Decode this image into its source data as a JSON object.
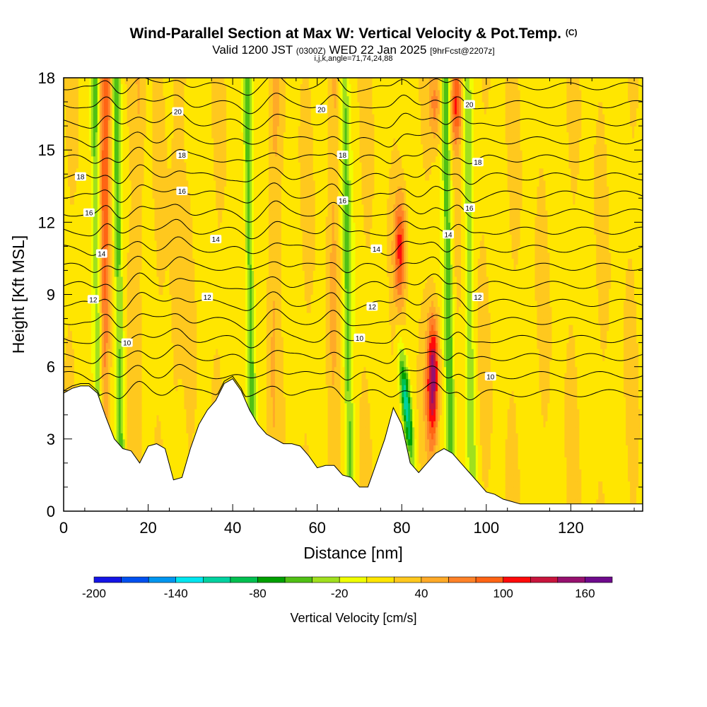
{
  "title": {
    "main": "Wind-Parallel Section at Max W: Vertical Velocity & Pot.Temp.",
    "copyright": "(C)",
    "valid_prefix": "Valid 1200 JST",
    "valid_z": "(0300Z)",
    "valid_date": "WED 22 Jan 2025",
    "forecast": "[9hrFcst@2207z]",
    "ijk": "i,j,k,angle=71,74,24,88"
  },
  "chart_data": {
    "type": "heatmap",
    "xlabel": "Distance [nm]",
    "ylabel": "Height [Kft MSL]",
    "xlim": [
      0,
      137
    ],
    "ylim": [
      0,
      18
    ],
    "x_ticks": [
      0,
      20,
      40,
      60,
      80,
      100,
      120
    ],
    "y_ticks": [
      0,
      3,
      6,
      9,
      12,
      15,
      18
    ],
    "colorbar": {
      "title": "Vertical Velocity [cm/s]",
      "boundaries": [
        -200,
        -180,
        -160,
        -140,
        -120,
        -100,
        -80,
        -60,
        -40,
        -20,
        0,
        20,
        40,
        60,
        80,
        100,
        120,
        140,
        160,
        180
      ],
      "tick_labels": [
        "-200",
        "-140",
        "-80",
        "-20",
        "40",
        "100",
        "160"
      ],
      "colors": [
        "#1414e6",
        "#0050f0",
        "#0096f0",
        "#00e6f0",
        "#00d2a0",
        "#00c050",
        "#00a000",
        "#50c014",
        "#a0e01e",
        "#f0ff00",
        "#ffe600",
        "#ffc81e",
        "#ffaa28",
        "#ff8228",
        "#ff6414",
        "#ff0a0a",
        "#c8143c",
        "#96106e",
        "#6e0a8c"
      ]
    },
    "updraft_cores": [
      {
        "x": 10,
        "w_max": 100
      },
      {
        "x": 18,
        "w_max": 40
      },
      {
        "x": 27,
        "w_max": 40
      },
      {
        "x": 50,
        "w_max": 40
      },
      {
        "x": 64,
        "w_max": 40
      },
      {
        "x": 80,
        "w_max": 100
      },
      {
        "x": 88,
        "w_max": 160
      },
      {
        "x": 93,
        "w_max": 100
      }
    ],
    "downdraft_bands": [
      {
        "x": 8,
        "w_min": -80
      },
      {
        "x": 13,
        "w_min": -60
      },
      {
        "x": 44,
        "w_min": -80
      },
      {
        "x": 67,
        "w_min": -60
      },
      {
        "x": 78,
        "w_min": -120
      },
      {
        "x": 91,
        "w_min": -80
      },
      {
        "x": 96,
        "w_min": -40
      }
    ],
    "terrain": {
      "x": [
        0,
        2,
        4,
        6,
        8,
        10,
        12,
        14,
        16,
        18,
        20,
        22,
        24,
        26,
        28,
        30,
        32,
        34,
        36,
        38,
        40,
        42,
        44,
        46,
        48,
        50,
        52,
        54,
        56,
        58,
        60,
        62,
        64,
        66,
        68,
        70,
        72,
        74,
        76,
        78,
        80,
        82,
        84,
        86,
        88,
        90,
        92,
        94,
        96,
        98,
        100,
        102,
        104,
        106,
        108,
        110,
        120,
        130,
        137
      ],
      "height": [
        4.9,
        5.1,
        5.2,
        5.2,
        4.9,
        3.9,
        3.0,
        2.6,
        2.5,
        2.0,
        2.7,
        2.8,
        2.6,
        1.3,
        1.4,
        2.6,
        3.6,
        4.2,
        4.6,
        5.3,
        5.5,
        5.0,
        4.2,
        3.6,
        3.2,
        3.0,
        2.8,
        2.8,
        2.7,
        2.3,
        1.8,
        1.9,
        1.9,
        1.5,
        1.4,
        1.0,
        1.0,
        2.0,
        3.0,
        4.3,
        3.6,
        2.0,
        1.6,
        2.0,
        2.4,
        2.6,
        2.4,
        2.0,
        1.6,
        1.2,
        0.8,
        0.7,
        0.5,
        0.4,
        0.3,
        0.3,
        0.3,
        0.3,
        0.3
      ]
    },
    "potential_temperature_contours": {
      "levels": [
        10,
        12,
        14,
        16,
        18,
        20
      ],
      "labels": [
        {
          "text": "10",
          "x": 15,
          "y": 7.0
        },
        {
          "text": "10",
          "x": 70,
          "y": 7.2
        },
        {
          "text": "10",
          "x": 101,
          "y": 5.6
        },
        {
          "text": "12",
          "x": 7,
          "y": 8.8
        },
        {
          "text": "12",
          "x": 34,
          "y": 8.9
        },
        {
          "text": "12",
          "x": 73,
          "y": 8.5
        },
        {
          "text": "12",
          "x": 98,
          "y": 8.9
        },
        {
          "text": "14",
          "x": 9,
          "y": 10.7
        },
        {
          "text": "14",
          "x": 36,
          "y": 11.3
        },
        {
          "text": "14",
          "x": 74,
          "y": 10.9
        },
        {
          "text": "14",
          "x": 91,
          "y": 11.5
        },
        {
          "text": "16",
          "x": 6,
          "y": 12.4
        },
        {
          "text": "16",
          "x": 28,
          "y": 13.3
        },
        {
          "text": "16",
          "x": 66,
          "y": 12.9
        },
        {
          "text": "16",
          "x": 96,
          "y": 12.6
        },
        {
          "text": "18",
          "x": 4,
          "y": 13.9
        },
        {
          "text": "18",
          "x": 28,
          "y": 14.8
        },
        {
          "text": "18",
          "x": 66,
          "y": 14.8
        },
        {
          "text": "18",
          "x": 98,
          "y": 14.5
        },
        {
          "text": "20",
          "x": 27,
          "y": 16.6
        },
        {
          "text": "20",
          "x": 61,
          "y": 16.7
        },
        {
          "text": "20",
          "x": 96,
          "y": 16.9
        }
      ]
    }
  }
}
